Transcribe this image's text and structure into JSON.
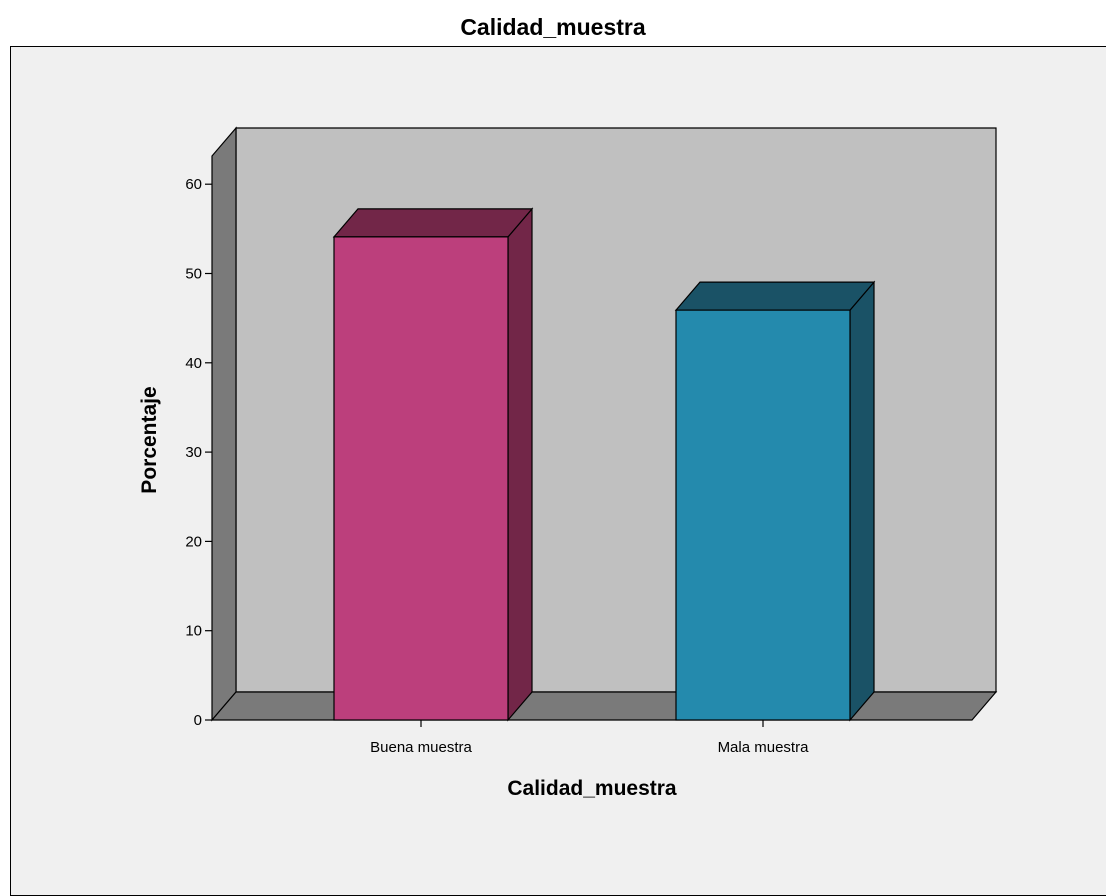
{
  "chart_data": {
    "type": "bar",
    "title": "Calidad_muestra",
    "xlabel": "Calidad_muestra",
    "ylabel": "Porcentaje",
    "categories": [
      "Buena muestra",
      "Mala muestra"
    ],
    "values": [
      54.1,
      45.9
    ],
    "ylim": [
      0,
      60
    ],
    "yticks": [
      "0",
      "10",
      "20",
      "30",
      "40",
      "50",
      "60"
    ],
    "colors": {
      "bar_front": [
        "#bc3f7c",
        "#248aad"
      ],
      "bar_side": [
        "#722648",
        "#1a5266"
      ],
      "bar_top": [
        "#722648",
        "#1a5266"
      ],
      "back_wall": "#c0c0c0",
      "side_wall": "#7a7a7a",
      "floor": "#7a7a7a",
      "frame_bg": "#f0f0f0"
    },
    "three_d": true,
    "legend": "none",
    "grid": false
  }
}
